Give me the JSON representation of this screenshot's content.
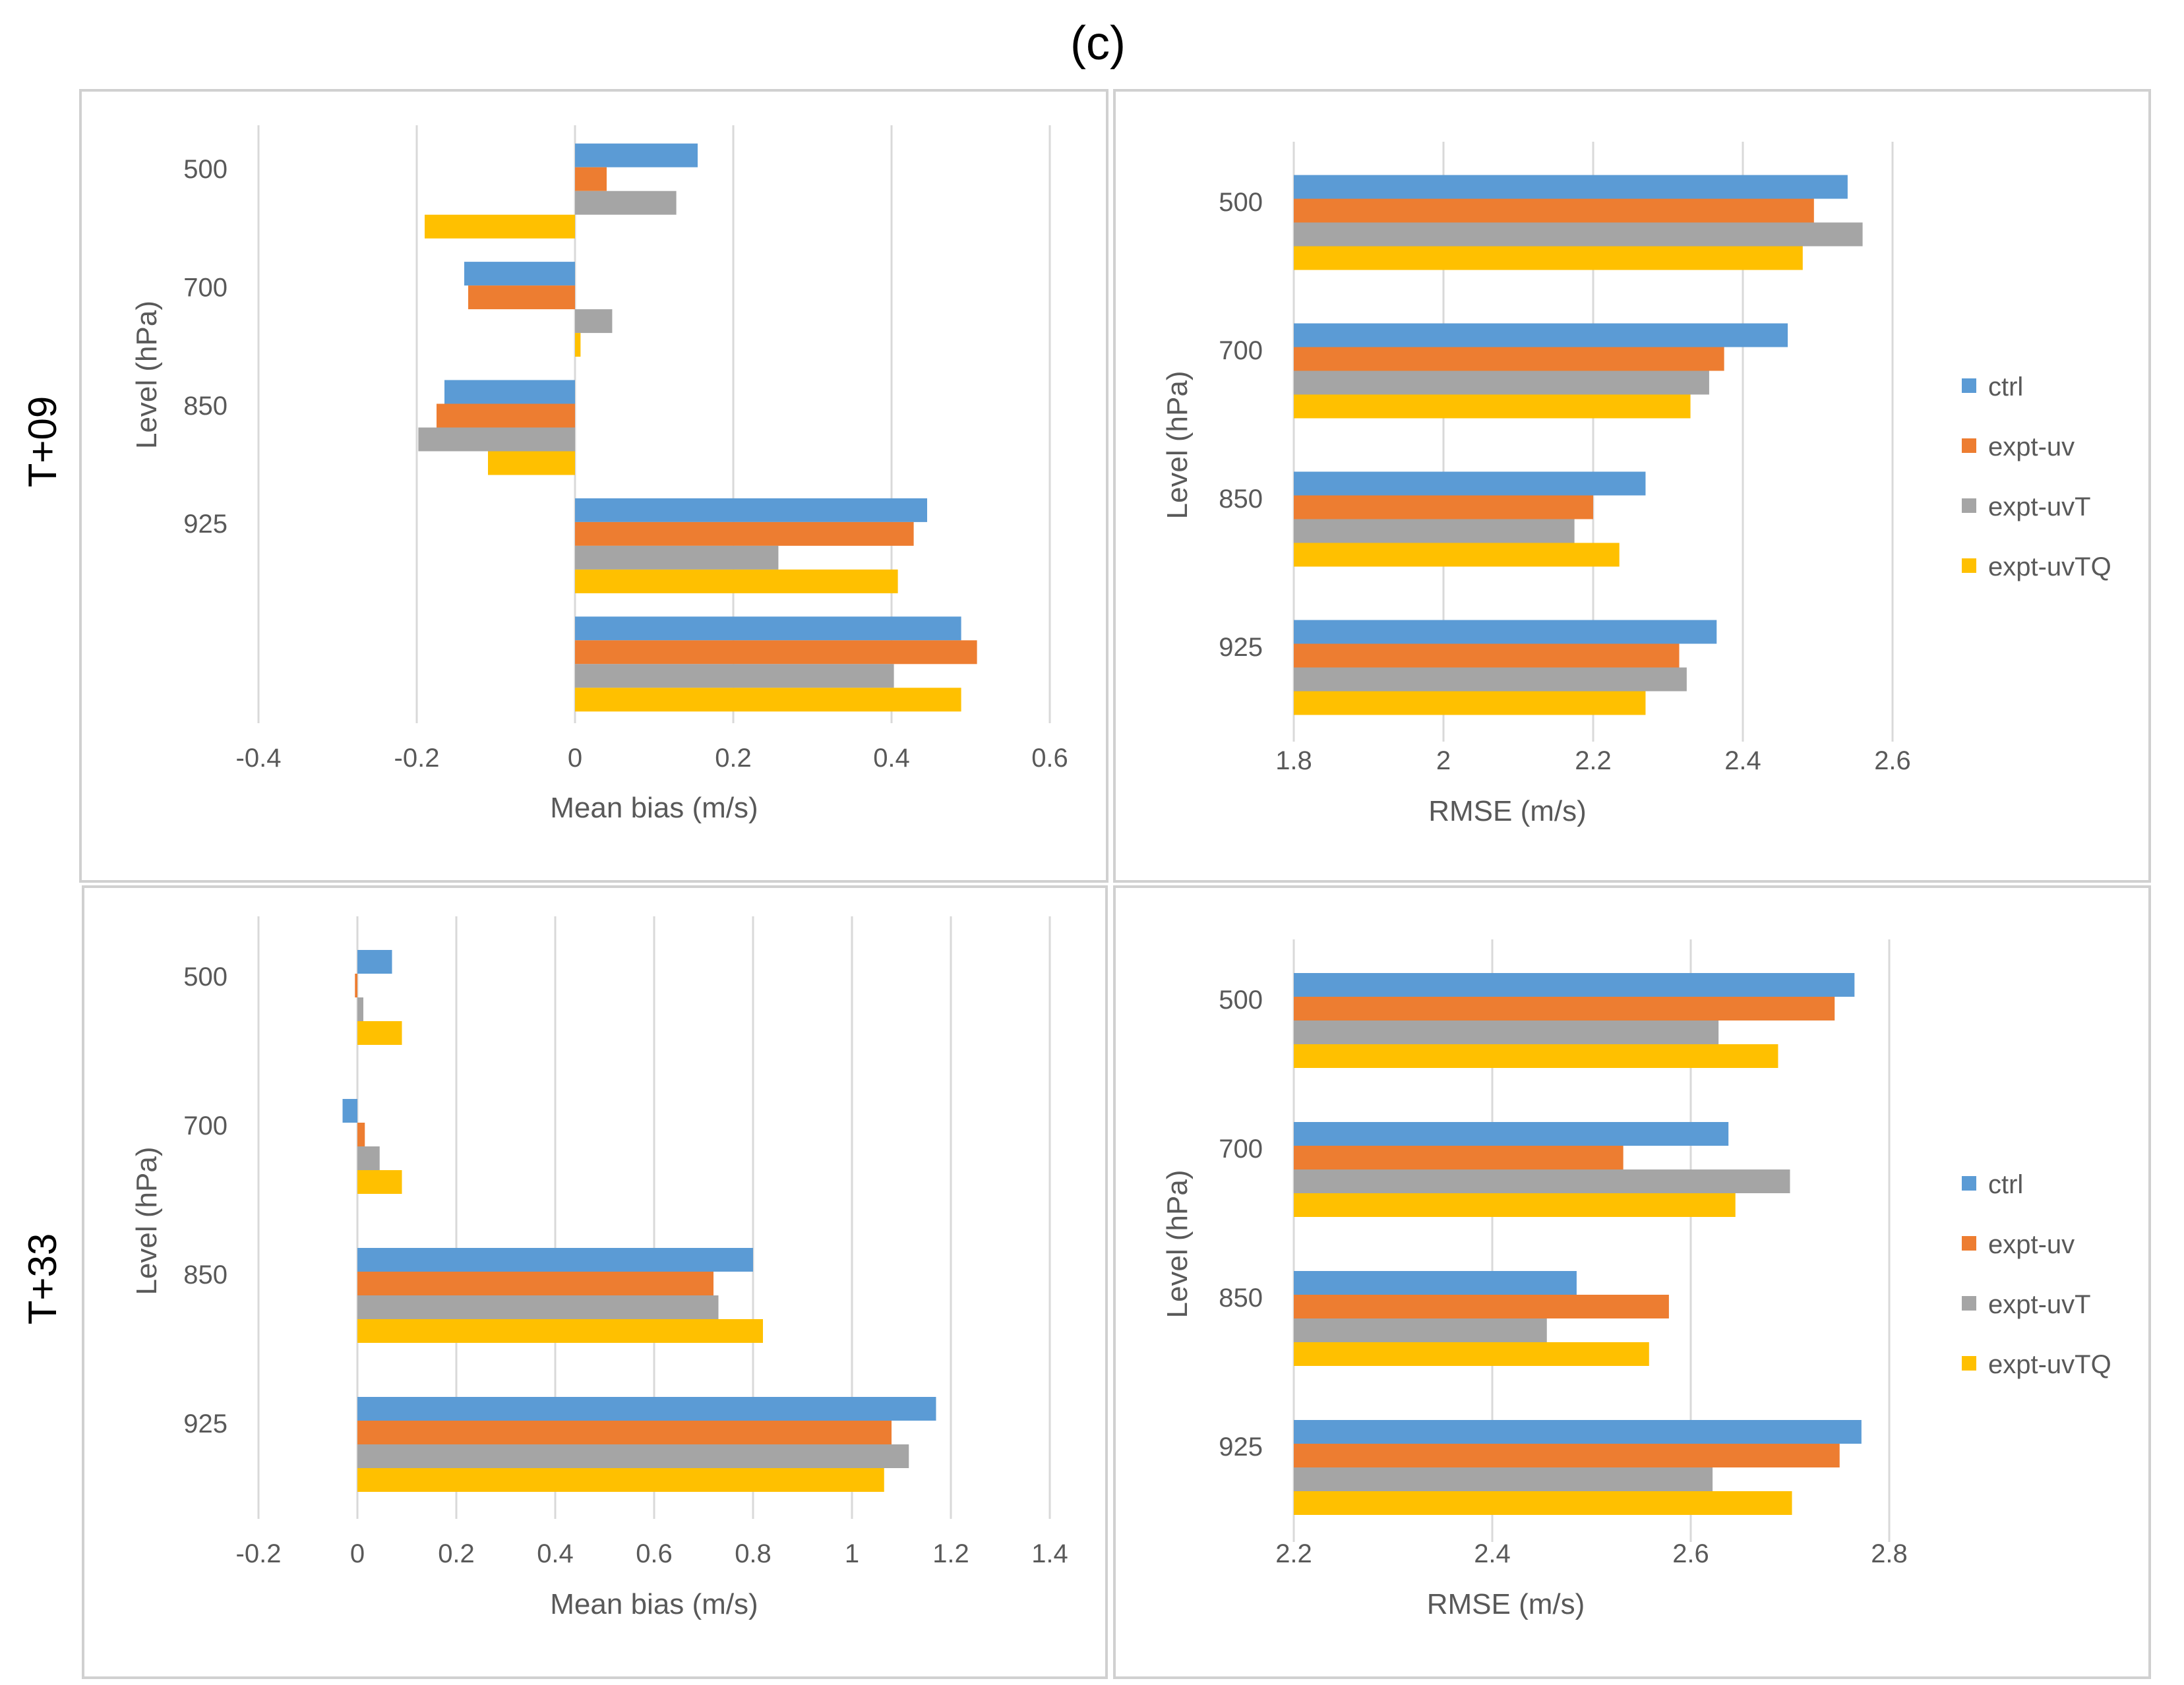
{
  "figure_label": "(c)",
  "row_labels": [
    "T+09",
    "T+33"
  ],
  "colors": {
    "ctrl": "#5b9bd5",
    "expt-uv": "#ed7d31",
    "expt-uvT": "#a5a5a5",
    "expt-uvTQ": "#ffc000",
    "grid": "#d9d9d9",
    "text": "#595959",
    "frame": "#d0d0d0"
  },
  "legend": [
    "ctrl",
    "expt-uv",
    "expt-uvT",
    "expt-uvTQ"
  ],
  "chart_data": [
    {
      "id": "t09-bias",
      "type": "bar",
      "orientation": "horizontal",
      "xlabel": "Mean bias (m/s)",
      "ylabel": "Level (hPa)",
      "xlim": [
        -0.4,
        0.6
      ],
      "xticks": [
        "-0.4",
        "-0.2",
        "0",
        "0.2",
        "0.4",
        "0.6"
      ],
      "categories": [
        "500",
        "700",
        "850",
        "925",
        ""
      ],
      "series": [
        {
          "name": "ctrl",
          "values": [
            0.155,
            -0.14,
            -0.165,
            0.445,
            0.488
          ]
        },
        {
          "name": "expt-uv",
          "values": [
            0.04,
            -0.135,
            -0.175,
            0.428,
            0.508
          ]
        },
        {
          "name": "expt-uvT",
          "values": [
            0.128,
            0.047,
            -0.198,
            0.257,
            0.403
          ]
        },
        {
          "name": "expt-uvTQ",
          "values": [
            -0.19,
            0.007,
            -0.11,
            0.408,
            0.488
          ]
        }
      ],
      "legend": false
    },
    {
      "id": "t09-rmse",
      "type": "bar",
      "orientation": "horizontal",
      "xlabel": "RMSE (m/s)",
      "ylabel": "Level (hPa)",
      "xlim": [
        1.8,
        2.6
      ],
      "xticks": [
        "1.8",
        "2",
        "2.2",
        "2.4",
        "2.6"
      ],
      "categories": [
        "500",
        "700",
        "850",
        "925"
      ],
      "series": [
        {
          "name": "ctrl",
          "values": [
            2.54,
            2.46,
            2.27,
            2.365
          ]
        },
        {
          "name": "expt-uv",
          "values": [
            2.495,
            2.375,
            2.2,
            2.315
          ]
        },
        {
          "name": "expt-uvT",
          "values": [
            2.56,
            2.355,
            2.175,
            2.325
          ]
        },
        {
          "name": "expt-uvTQ",
          "values": [
            2.48,
            2.33,
            2.235,
            2.27
          ]
        }
      ],
      "legend": true
    },
    {
      "id": "t33-bias",
      "type": "bar",
      "orientation": "horizontal",
      "xlabel": "Mean bias (m/s)",
      "ylabel": "Level (hPa)",
      "xlim": [
        -0.2,
        1.4
      ],
      "xticks": [
        "-0.2",
        "0",
        "0.2",
        "0.4",
        "0.6",
        "0.8",
        "1",
        "1.2",
        "1.4"
      ],
      "categories": [
        "500",
        "700",
        "850",
        "925"
      ],
      "series": [
        {
          "name": "ctrl",
          "values": [
            0.07,
            -0.03,
            0.8,
            1.17
          ]
        },
        {
          "name": "expt-uv",
          "values": [
            -0.005,
            0.015,
            0.72,
            1.08
          ]
        },
        {
          "name": "expt-uvT",
          "values": [
            0.012,
            0.045,
            0.73,
            1.115
          ]
        },
        {
          "name": "expt-uvTQ",
          "values": [
            0.09,
            0.09,
            0.82,
            1.065
          ]
        }
      ],
      "legend": false
    },
    {
      "id": "t33-rmse",
      "type": "bar",
      "orientation": "horizontal",
      "xlabel": "RMSE (m/s)",
      "ylabel": "Level (hPa)",
      "xlim": [
        2.2,
        2.8
      ],
      "xticks": [
        "2.2",
        "2.4",
        "2.6",
        "2.8"
      ],
      "categories": [
        "500",
        "700",
        "850",
        "925"
      ],
      "series": [
        {
          "name": "ctrl",
          "values": [
            2.765,
            2.638,
            2.485,
            2.772
          ]
        },
        {
          "name": "expt-uv",
          "values": [
            2.745,
            2.532,
            2.578,
            2.75
          ]
        },
        {
          "name": "expt-uvT",
          "values": [
            2.628,
            2.7,
            2.455,
            2.622
          ]
        },
        {
          "name": "expt-uvTQ",
          "values": [
            2.688,
            2.645,
            2.558,
            2.702
          ]
        }
      ],
      "legend": true
    }
  ]
}
